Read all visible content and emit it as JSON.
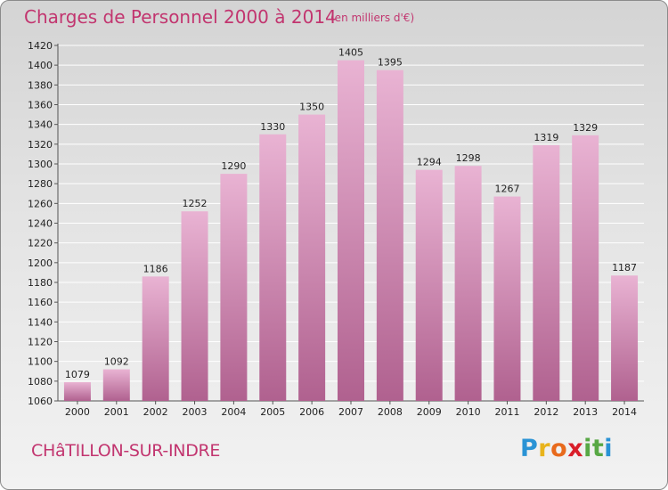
{
  "header": {
    "title": "Charges de Personnel 2000 à 2014",
    "unit": "(en milliers d'€)"
  },
  "footer": {
    "town": "CHâTILLON-SUR-INDRE",
    "logo_letters": [
      "P",
      "r",
      "o",
      "x",
      "i",
      "t",
      "i"
    ],
    "logo_colors": [
      "#2a93d5",
      "#e8b41c",
      "#e86a1c",
      "#d91e2a",
      "#58a845",
      "#58a845",
      "#2a93d5"
    ]
  },
  "chart_data": {
    "type": "bar",
    "title": "Charges de Personnel 2000 à 2014",
    "subtitle": "(en milliers d'€)",
    "categories": [
      "2000",
      "2001",
      "2002",
      "2003",
      "2004",
      "2005",
      "2006",
      "2007",
      "2008",
      "2009",
      "2010",
      "2011",
      "2012",
      "2013",
      "2014"
    ],
    "values": [
      1079,
      1092,
      1186,
      1252,
      1290,
      1330,
      1350,
      1405,
      1395,
      1294,
      1298,
      1267,
      1319,
      1329,
      1187
    ],
    "ylim": [
      1060,
      1420
    ],
    "yticks": [
      1060,
      1080,
      1100,
      1120,
      1140,
      1160,
      1180,
      1200,
      1220,
      1240,
      1260,
      1280,
      1300,
      1320,
      1340,
      1360,
      1380,
      1400,
      1420
    ],
    "grid": true,
    "bar_color": "#dc9ac2"
  }
}
